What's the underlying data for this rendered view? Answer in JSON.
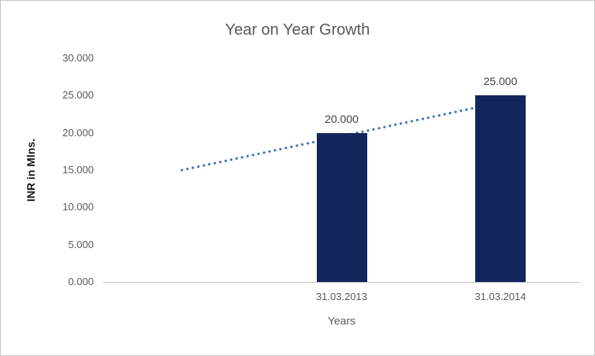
{
  "chart_data": {
    "type": "bar",
    "title": "Year on Year Growth",
    "xlabel": "Years",
    "ylabel": "INR in Mlns.",
    "categories": [
      "31.03.2013",
      "31.03.2014"
    ],
    "values": [
      20,
      25
    ],
    "data_labels": [
      "20.000",
      "25.000"
    ],
    "ylim": [
      0,
      30
    ],
    "ytick_step": 5,
    "ytick_labels": [
      "0.000",
      "5.000",
      "10.000",
      "15.000",
      "20.000",
      "25.000",
      "30.000"
    ],
    "grid": false,
    "legend": "none",
    "bar_centers_frac": [
      0.5,
      0.833
    ],
    "trendline": {
      "style": "dotted",
      "points": [
        {
          "x_frac": 0.165,
          "value": 15.0
        },
        {
          "x_frac": 0.878,
          "value": 24.7
        }
      ]
    },
    "colors": {
      "bar": "#13265C",
      "trendline": "#3E78B8",
      "title_text": "#595959",
      "tick_text": "#595959",
      "axis_line": "#BFBFBF"
    }
  }
}
